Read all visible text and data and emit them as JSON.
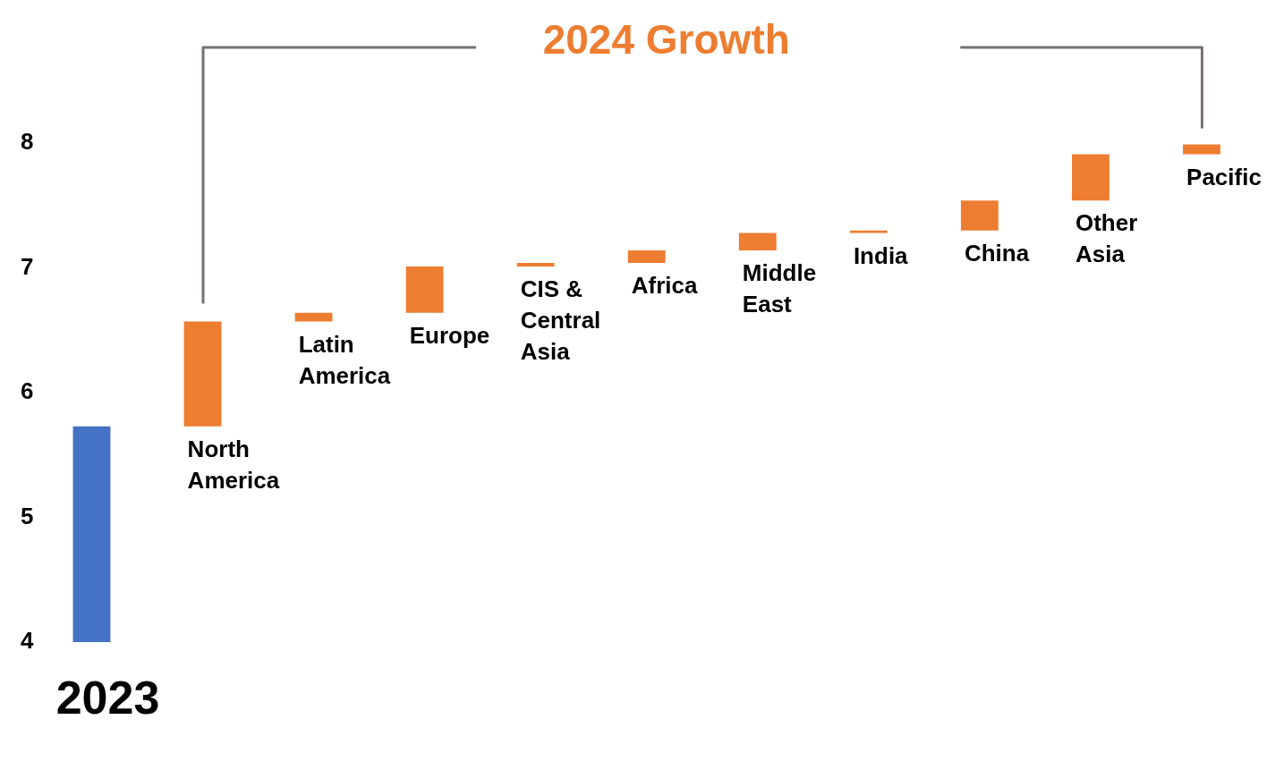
{
  "chart_data": {
    "type": "bar",
    "title": "2024 Growth",
    "categories": [
      "2023",
      "North America",
      "Latin America",
      "Europe",
      "CIS & Central Asia",
      "Africa",
      "Middle East",
      "India",
      "China",
      "Other Asia",
      "Pacific"
    ],
    "values": [
      5.73,
      0.84,
      0.07,
      0.37,
      0.03,
      0.1,
      0.14,
      0.02,
      0.24,
      0.37,
      0.08
    ],
    "base": [
      null,
      5.73,
      6.57,
      6.64,
      7.01,
      7.04,
      7.14,
      7.28,
      7.3,
      7.54,
      7.91
    ],
    "colors": [
      "#4472c4",
      "#ed7d31",
      "#ed7d31",
      "#ed7d31",
      "#ed7d31",
      "#ed7d31",
      "#ed7d31",
      "#ed7d31",
      "#ed7d31",
      "#ed7d31",
      "#ed7d31"
    ],
    "ylim": [
      4,
      8
    ],
    "yticks": [
      4,
      5,
      6,
      7,
      8
    ],
    "grid": false,
    "legend": false
  }
}
